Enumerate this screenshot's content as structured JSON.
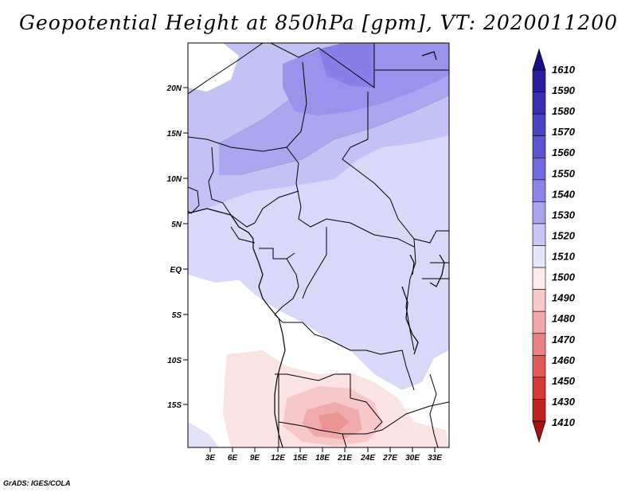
{
  "title": "Geopotential Height at 850hPa [gpm], VT: 2020011200",
  "credit": "GrADS: IGES/COLA",
  "map": {
    "lat_ticks": [
      "20N",
      "15N",
      "10N",
      "5N",
      "EQ",
      "5S",
      "10S",
      "15S"
    ],
    "lon_ticks": [
      "3E",
      "6E",
      "9E",
      "12E",
      "15E",
      "18E",
      "21E",
      "24E",
      "27E",
      "30E",
      "33E"
    ]
  },
  "colorbar": {
    "labels": [
      "1610",
      "1590",
      "1580",
      "1570",
      "1560",
      "1550",
      "1540",
      "1530",
      "1520",
      "1510",
      "1500",
      "1490",
      "1480",
      "1470",
      "1460",
      "1450",
      "1430",
      "1410"
    ],
    "colors": [
      "#1a0f8a",
      "#2a1fa0",
      "#3a30b5",
      "#4a42c5",
      "#5c55d2",
      "#7068dd",
      "#8a84e6",
      "#a8a4ee",
      "#c8c6f5",
      "#e6e6fa",
      "#fdeaea",
      "#f8c9c9",
      "#f2a6a6",
      "#ea8080",
      "#e05a5a",
      "#d23a3a",
      "#c02222",
      "#a81212"
    ]
  }
}
